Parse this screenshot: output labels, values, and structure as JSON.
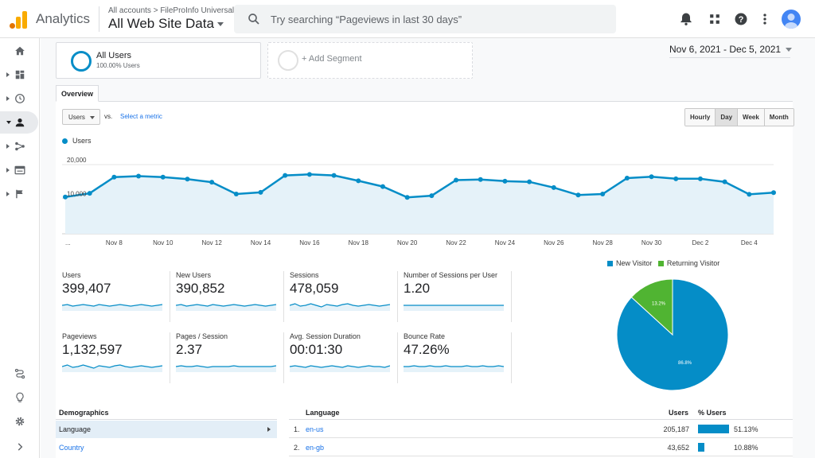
{
  "header": {
    "app_title": "Analytics",
    "account_breadcrumb": "All accounts > FileProInfo Universal",
    "view_name": "All Web Site Data",
    "search_placeholder": "Try searching “Pageviews in last 30 days”",
    "icons": [
      "bell-icon",
      "apps-grid-icon",
      "help-icon",
      "more-vert-icon",
      "avatar"
    ]
  },
  "leftnav": {
    "items": [
      "home-icon",
      "customization-icon",
      "realtime-icon",
      "audience-icon",
      "acquisition-icon",
      "behavior-icon",
      "conversions-icon"
    ],
    "active": "audience-icon",
    "bottom_items": [
      "attribution-icon",
      "discover-icon",
      "admin-gear-icon",
      "expand-icon"
    ]
  },
  "segments": {
    "active_name": "All Users",
    "active_sub": "100.00% Users",
    "add_label": "+ Add Segment"
  },
  "date_range": "Nov 6, 2021 - Dec 5, 2021",
  "tabs": {
    "overview": "Overview"
  },
  "controls": {
    "metric_select": "Users",
    "vs_label": "vs.",
    "select_metric": "Select a metric",
    "periods": [
      "Hourly",
      "Day",
      "Week",
      "Month"
    ],
    "active_period": "Day"
  },
  "chart_data": {
    "type": "line",
    "legend": "Users",
    "x_tick_labels": [
      "...",
      "Nov 8",
      "Nov 10",
      "Nov 12",
      "Nov 14",
      "Nov 16",
      "Nov 18",
      "Nov 20",
      "Nov 22",
      "Nov 24",
      "Nov 26",
      "Nov 28",
      "Nov 30",
      "Dec 2",
      "Dec 4"
    ],
    "y_tick_labels": [
      "20,000",
      "10,000"
    ],
    "ylim": [
      0,
      24000
    ],
    "series": [
      {
        "name": "Users",
        "values": [
          10400,
          11500,
          16300,
          16600,
          16300,
          15700,
          14800,
          11300,
          11800,
          16800,
          17100,
          16800,
          15200,
          13500,
          10300,
          10800,
          15400,
          15600,
          15100,
          14900,
          13200,
          11000,
          11300,
          16000,
          16400,
          15800,
          15800,
          14900,
          11200,
          11700
        ]
      }
    ]
  },
  "scorecards": [
    {
      "label": "Users",
      "value": "399,407",
      "spark": [
        5,
        6,
        4,
        5,
        6,
        5,
        4,
        6,
        5,
        4,
        5,
        6,
        5,
        4,
        5,
        6,
        5,
        4,
        5,
        6
      ]
    },
    {
      "label": "New Users",
      "value": "390,852",
      "spark": [
        5,
        6,
        4,
        5,
        6,
        5,
        4,
        6,
        5,
        4,
        5,
        6,
        5,
        4,
        5,
        6,
        5,
        4,
        5,
        6
      ]
    },
    {
      "label": "Sessions",
      "value": "478,059",
      "spark": [
        5,
        7,
        4,
        5,
        7,
        5,
        3,
        6,
        5,
        4,
        6,
        7,
        5,
        4,
        5,
        6,
        5,
        4,
        5,
        6
      ]
    },
    {
      "label": "Number of Sessions per User",
      "value": "1.20",
      "spark": [
        5,
        5,
        5,
        5,
        5,
        5,
        5,
        5,
        5,
        5,
        5,
        5,
        5,
        5,
        5,
        5,
        5,
        5,
        5,
        5
      ]
    },
    {
      "label": "Pageviews",
      "value": "1,132,597",
      "spark": [
        5,
        7,
        4,
        5,
        7,
        5,
        3,
        6,
        5,
        4,
        6,
        7,
        5,
        4,
        5,
        6,
        5,
        4,
        5,
        6
      ]
    },
    {
      "label": "Pages / Session",
      "value": "2.37",
      "spark": [
        5,
        6,
        5,
        5,
        6,
        5,
        4,
        5,
        5,
        5,
        5,
        6,
        5,
        5,
        5,
        5,
        5,
        5,
        5,
        6
      ]
    },
    {
      "label": "Avg. Session Duration",
      "value": "00:01:30",
      "spark": [
        5,
        6,
        5,
        4,
        6,
        5,
        4,
        5,
        6,
        5,
        4,
        6,
        5,
        4,
        5,
        6,
        5,
        5,
        4,
        6
      ]
    },
    {
      "label": "Bounce Rate",
      "value": "47.26%",
      "spark": [
        5,
        5,
        6,
        5,
        5,
        6,
        5,
        5,
        6,
        5,
        5,
        5,
        6,
        5,
        5,
        6,
        5,
        5,
        6,
        5
      ]
    }
  ],
  "pie": {
    "legend_new": "New Visitor",
    "legend_returning": "Returning Visitor",
    "color_new": "#058dc7",
    "color_returning": "#50b432",
    "slices": [
      {
        "label": "86.8%",
        "value": 86.8
      },
      {
        "label": "13.2%",
        "value": 13.2
      }
    ]
  },
  "demographics": {
    "title": "Demographics",
    "items": [
      "Language",
      "Country"
    ],
    "active": "Language"
  },
  "language_table": {
    "col_language": "Language",
    "col_users": "Users",
    "col_pct": "% Users",
    "rows": [
      {
        "idx": "1.",
        "language": "en-us",
        "users": "205,187",
        "pct": "51.13%",
        "pct_value": 51.13
      },
      {
        "idx": "2.",
        "language": "en-gb",
        "users": "43,652",
        "pct": "10.88%",
        "pct_value": 10.88
      }
    ]
  }
}
